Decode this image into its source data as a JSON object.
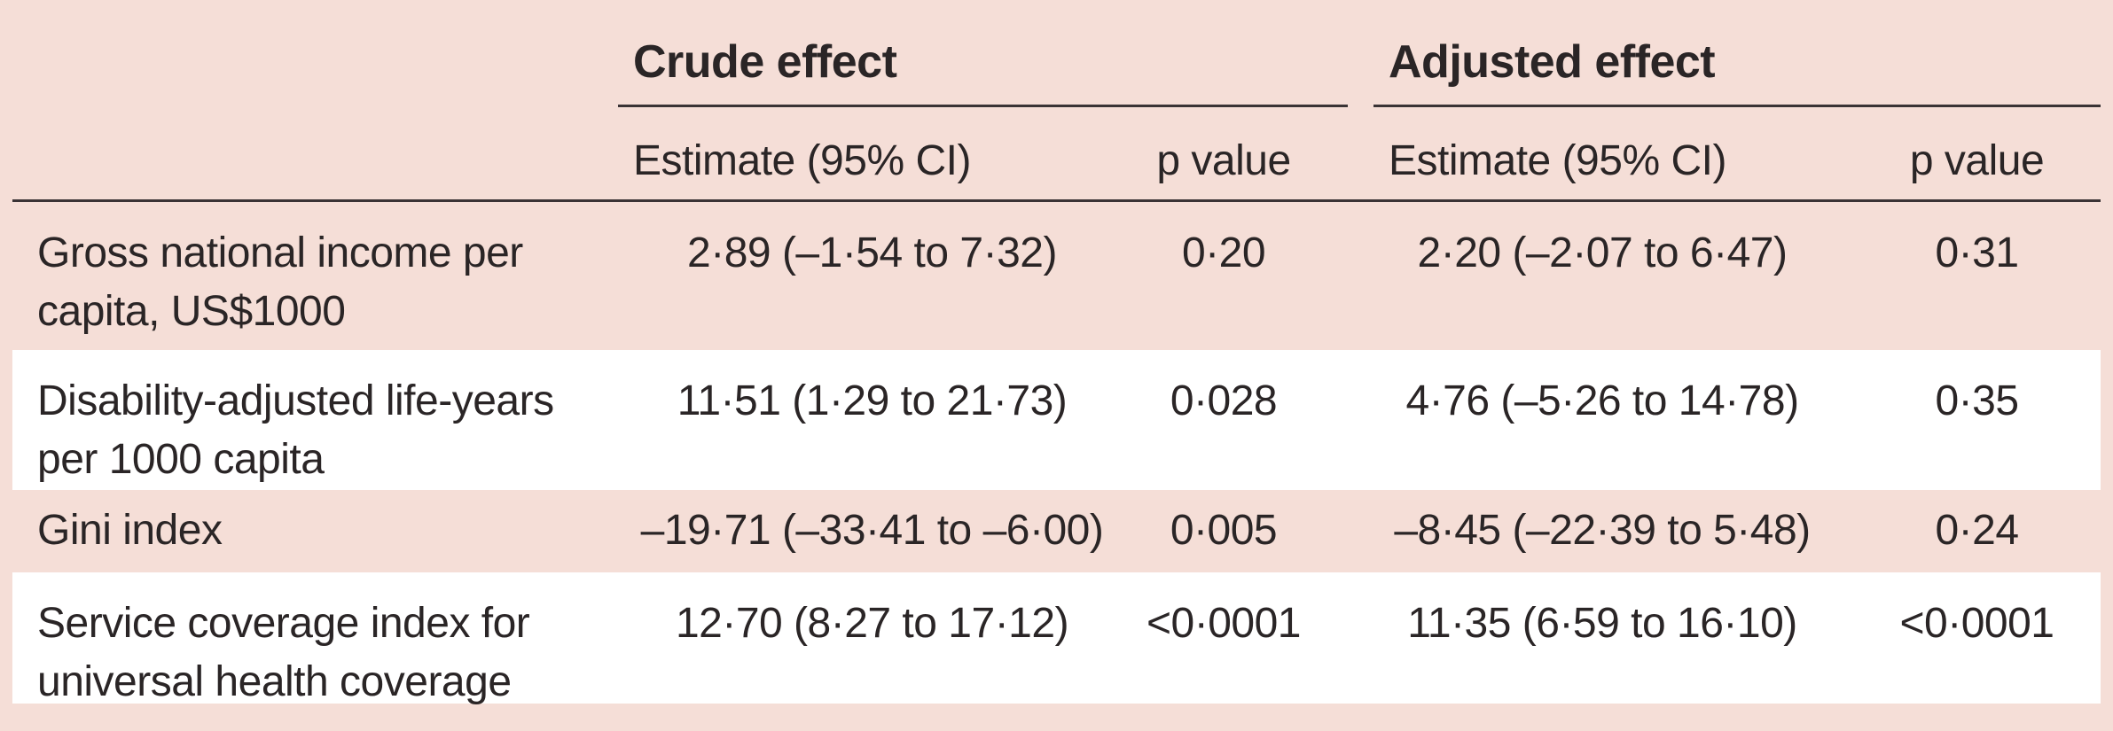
{
  "colors": {
    "background_pink": "#f5ded7",
    "row_white": "#ffffff",
    "text": "#2a2526",
    "rule": "#3a3335"
  },
  "table": {
    "group_headers": [
      "Crude effect",
      "Adjusted effect"
    ],
    "column_headers": {
      "crude_estimate": "Estimate (95% CI)",
      "crude_p": "p value",
      "adjusted_estimate": "Estimate (95% CI)",
      "adjusted_p": "p value"
    },
    "rows": [
      {
        "label_lines": [
          "Gross national income per",
          "capita, US$1000"
        ],
        "crude_estimate": "2·89 (–1·54 to 7·32)",
        "crude_p": "0·20",
        "adjusted_estimate": "2·20 (–2·07 to 6·47)",
        "adjusted_p": "0·31"
      },
      {
        "label_lines": [
          "Disability-adjusted life-years",
          "per 1000 capita"
        ],
        "crude_estimate": "11·51 (1·29 to 21·73)",
        "crude_p": "0·028",
        "adjusted_estimate": "4·76 (–5·26 to 14·78)",
        "adjusted_p": "0·35"
      },
      {
        "label_lines": [
          "Gini index"
        ],
        "crude_estimate": "–19·71 (–33·41 to –6·00)",
        "crude_p": "0·005",
        "adjusted_estimate": "–8·45 (–22·39 to 5·48)",
        "adjusted_p": "0·24"
      },
      {
        "label_lines": [
          "Service coverage index for",
          "universal health coverage"
        ],
        "crude_estimate": "12·70 (8·27 to 17·12)",
        "crude_p": "<0·0001",
        "adjusted_estimate": "11·35 (6·59 to 16·10)",
        "adjusted_p": "<0·0001"
      }
    ]
  }
}
